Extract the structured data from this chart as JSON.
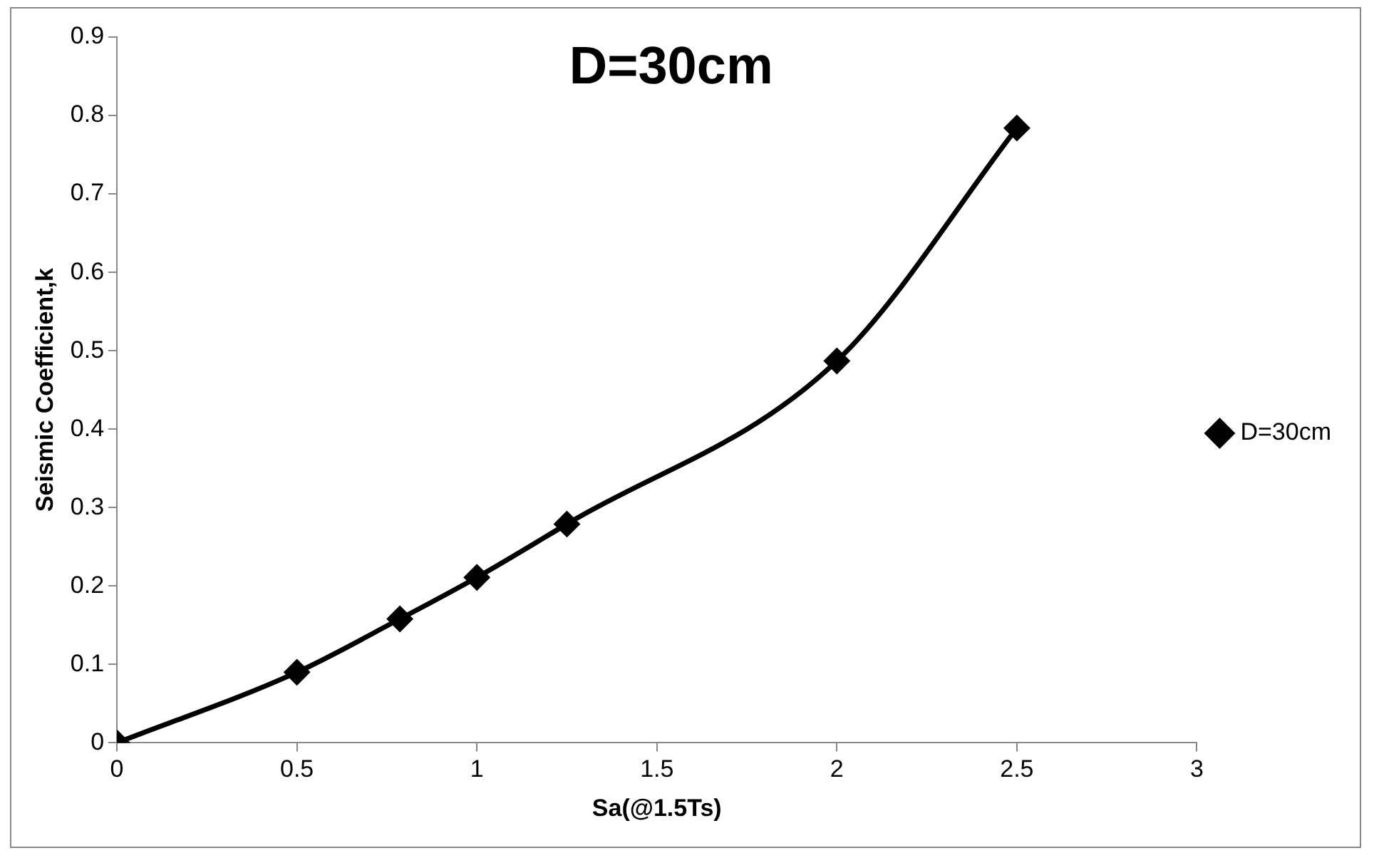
{
  "chart_data": {
    "type": "line",
    "title": "D=30cm",
    "xlabel": "Sa(@1.5Ts)",
    "ylabel": "Seismic Coefficient,k",
    "series": [
      {
        "name": "D=30cm",
        "color": "#000000",
        "x": [
          0,
          0.5,
          0.786,
          1,
          1.25,
          2,
          2.5
        ],
        "values": [
          0,
          0.09,
          0.158,
          0.211,
          0.279,
          0.487,
          0.784
        ]
      }
    ],
    "xlim": [
      0,
      3
    ],
    "xticks": [
      0,
      0.5,
      1,
      1.5,
      2,
      2.5,
      3
    ],
    "ylim": [
      0,
      0.9
    ],
    "yticks": [
      0,
      0.1,
      0.2,
      0.3,
      0.4,
      0.5,
      0.6,
      0.7,
      0.8,
      0.9
    ],
    "grid": false,
    "legend": "right",
    "marker": "diamond",
    "line_style": "solid"
  }
}
